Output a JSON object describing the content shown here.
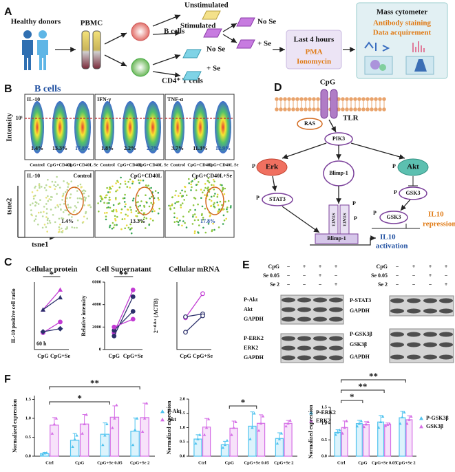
{
  "panel_a": {
    "label": "A",
    "donors": "Healthy donors",
    "pbmc": "PBMC",
    "b_cells": "B cells",
    "t_cells": "CD4⁺ T cells",
    "unstimulated": "Unstimulated",
    "stimulated": "Stimulated",
    "no_se_b": "No Se",
    "plus_se_b": "+ Se",
    "no_se_t": "No Se",
    "plus_se_t": "+ Se",
    "last": "Last 4 hours",
    "pma": "PMA",
    "ionomycin": "Ionomycin",
    "cytometer": "Mass cytometer",
    "staining": "Antibody staining",
    "acquirement": "Data acquirement"
  },
  "panel_b": {
    "label": "B",
    "title": "B cells",
    "y_label": "Intensity",
    "tick": "10¹",
    "plots": [
      {
        "marker": "IL-10",
        "percents": [
          "1.4%",
          "13.3%",
          "17.8%"
        ]
      },
      {
        "marker": "IFN-γ",
        "percents": [
          "1.8%",
          "2.2%",
          "2.7%"
        ]
      },
      {
        "marker": "TNF-α",
        "percents": [
          "3.7%",
          "11.3%",
          "12.9%"
        ]
      }
    ],
    "groups": [
      "Control",
      "CpG+CD40L",
      "CpG+CD40L Se"
    ],
    "tsne": {
      "marker": "IL-10",
      "titles": [
        "Control",
        "CpG+CD40L",
        "CpG+CD40L+Se"
      ],
      "percents": [
        "1.4%",
        "13.3%",
        "17.8%"
      ],
      "x_label": "tsne1",
      "y_label": "tsne2"
    }
  },
  "panel_c": {
    "label": "C"
  },
  "panel_d": {
    "label": "D",
    "cpg": "CpG",
    "tlr": "TLR",
    "ras": "RAS",
    "pik3": "PIK3",
    "erk": "Erk",
    "blimp": "Blimp-1",
    "akt": "Akt",
    "p": "P",
    "stat3": "STAT3",
    "gsk3": "GSK3",
    "repression_1": "IL10",
    "repression_2": "repression",
    "activation_1": "IL10",
    "activation_2": "activation",
    "blimp_box": "Blimp-1",
    "stat3_box": "STAT3"
  },
  "panel_e": {
    "label": "E",
    "treatments": [
      "CpG",
      "Se 0.05",
      "Se 2"
    ],
    "signs": [
      [
        "−",
        "+",
        "+",
        "+"
      ],
      [
        "−",
        "−",
        "+",
        "−"
      ],
      [
        "−",
        "−",
        "−",
        "+"
      ]
    ],
    "left_rows": [
      "P-Akt",
      "Akt",
      "GAPDH",
      "P-ERK2",
      "ERK2",
      "GAPDH"
    ],
    "right_rows": [
      "P-STAT3",
      "GAPDH",
      "P-GSK3β",
      "GSK3β",
      "GAPDH"
    ]
  },
  "panel_f": {
    "label": "F"
  },
  "chart_data": [
    {
      "type": "line",
      "title": "Cellular protein",
      "y_label": "IL-10 positive cell ratio",
      "note": "60 h",
      "categories": [
        "CpG",
        "CpG+Se"
      ],
      "ylim": [
        0,
        22
      ],
      "annotations": [
        "*"
      ],
      "series": [
        {
          "color": "#c23bd3",
          "marker": "triangle",
          "values": [
            13,
            19.5
          ]
        },
        {
          "color": "#2b2f6b",
          "marker": "triangle",
          "values": [
            13,
            17
          ]
        },
        {
          "color": "#c23bd3",
          "marker": "circle",
          "values": [
            5.5,
            9
          ]
        },
        {
          "color": "#2b2f6b",
          "marker": "diamond",
          "values": [
            5.8,
            6.8
          ]
        }
      ]
    },
    {
      "type": "line",
      "title": "Cell Supernatant",
      "y_label": "Relative intensity",
      "categories": [
        "CpG",
        "CpG+Se"
      ],
      "ylim": [
        0,
        6000
      ],
      "yticks": [
        0,
        2000,
        4000,
        6000
      ],
      "annotations": [
        "**"
      ],
      "series": [
        {
          "color": "#c23bd3",
          "marker": "circle",
          "values": [
            1500,
            5300
          ]
        },
        {
          "color": "#2b2f6b",
          "marker": "circle",
          "values": [
            1200,
            4700
          ]
        },
        {
          "color": "#2b2f6b",
          "marker": "circle",
          "values": [
            1700,
            3400
          ]
        },
        {
          "color": "#c23bd3",
          "marker": "circle",
          "values": [
            2000,
            2700
          ]
        }
      ]
    },
    {
      "type": "line",
      "title": "Cellular mRNA",
      "y_label": "2⁻ᐞᐞᶜᵗ (ACTB)",
      "categories": [
        "CpG",
        "CpG+Se"
      ],
      "ylim": [
        0,
        7
      ],
      "series": [
        {
          "color": "#c23bd3",
          "marker": "open-circle",
          "values": [
            3.3,
            5.8
          ]
        },
        {
          "color": "#2b2f6b",
          "marker": "open-circle",
          "values": [
            3.4,
            3.7
          ]
        },
        {
          "color": "#2b2f6b",
          "marker": "open-circle",
          "values": [
            1.8,
            3.5
          ]
        }
      ]
    },
    {
      "type": "bar",
      "y_label": "Normalized expression",
      "categories": [
        "Ctrl",
        "CpG",
        "CpG+Se 0.05",
        "CpG+Se 2"
      ],
      "ylim": [
        0,
        1.6
      ],
      "yticks": [
        {
          "value": 0,
          "label": "0.0"
        },
        {
          "value": 0.5,
          "label": "0.5"
        },
        {
          "value": 1,
          "label": "1.0"
        },
        {
          "value": 1.5,
          "label": "1.5"
        }
      ],
      "annotations": [
        "**",
        "*"
      ],
      "series": [
        {
          "name": "P-Akt",
          "color": "#4fc3ef",
          "values": [
            0.07,
            0.42,
            0.58,
            0.66
          ],
          "errors": [
            0.03,
            0.18,
            0.3,
            0.35
          ],
          "points": [
            [
              0.05,
              0.08,
              0.09
            ],
            [
              0.25,
              0.45,
              0.55
            ],
            [
              0.3,
              0.55,
              0.85
            ],
            [
              0.3,
              0.7,
              1.0
            ]
          ]
        },
        {
          "name": "Akt",
          "color": "#d56fe6",
          "values": [
            0.82,
            0.85,
            1.03,
            1.02
          ],
          "errors": [
            0.2,
            0.25,
            0.3,
            0.38
          ],
          "points": [
            [
              0.6,
              0.85,
              1.0
            ],
            [
              0.6,
              0.85,
              1.1
            ],
            [
              0.75,
              1.0,
              1.35
            ],
            [
              0.65,
              1.0,
              1.4
            ]
          ]
        }
      ]
    },
    {
      "type": "bar",
      "y_label": "Normalized expression",
      "categories": [
        "Ctrl",
        "CpG",
        "CpG+Se 0.05",
        "CpG+Se 2"
      ],
      "ylim": [
        0,
        2
      ],
      "yticks": [
        {
          "value": 0,
          "label": "0.0"
        },
        {
          "value": 0.5,
          "label": "0.5"
        },
        {
          "value": 1,
          "label": "1.0"
        },
        {
          "value": 1.5,
          "label": "1.5"
        },
        {
          "value": 2,
          "label": "2.0"
        }
      ],
      "annotations": [
        "*"
      ],
      "series": [
        {
          "name": "P-ERK2",
          "color": "#4fc3ef",
          "values": [
            0.6,
            0.4,
            1.05,
            0.62
          ],
          "errors": [
            0.15,
            0.12,
            0.5,
            0.2
          ],
          "points": [
            [
              0.45,
              0.6,
              0.75
            ],
            [
              0.3,
              0.4,
              0.55
            ],
            [
              0.6,
              1.0,
              1.5
            ],
            [
              0.45,
              0.6,
              0.8
            ]
          ]
        },
        {
          "name": "ERK2",
          "color": "#d56fe6",
          "values": [
            1.02,
            0.98,
            1.15,
            1.15
          ],
          "errors": [
            0.3,
            0.25,
            0.3,
            0.1
          ],
          "points": [
            [
              0.75,
              1.0,
              1.3
            ],
            [
              0.75,
              1.0,
              1.2
            ],
            [
              0.9,
              1.15,
              1.4
            ],
            [
              1.05,
              1.15,
              1.25
            ]
          ]
        }
      ]
    },
    {
      "type": "bar",
      "y_label": "Normalized expression",
      "categories": [
        "Ctrl",
        "CpG",
        "CpG+Se 0.05",
        "CpG+Se 2"
      ],
      "ylim": [
        0,
        1.5
      ],
      "yticks": [
        {
          "value": 0,
          "label": "0.0"
        },
        {
          "value": 0.5,
          "label": "0.5"
        },
        {
          "value": 1,
          "label": "1.0"
        },
        {
          "value": 1.5,
          "label": "1.5"
        }
      ],
      "annotations": [
        "**",
        "**",
        "*"
      ],
      "series": [
        {
          "name": "P-GSK3β",
          "color": "#4fc3ef",
          "values": [
            0.73,
            1.0,
            1.05,
            1.18
          ],
          "errors": [
            0.08,
            0.1,
            0.2,
            0.2
          ],
          "points": [
            [
              0.66,
              0.73,
              0.8
            ],
            [
              0.92,
              1.0,
              1.08
            ],
            [
              0.88,
              1.05,
              1.22
            ],
            [
              1.0,
              1.2,
              1.35
            ]
          ]
        },
        {
          "name": "GSK3β",
          "color": "#d56fe6",
          "values": [
            0.88,
            0.98,
            0.97,
            1.12
          ],
          "errors": [
            0.2,
            0.08,
            0.05,
            0.12
          ],
          "points": [
            [
              0.7,
              0.88,
              1.08
            ],
            [
              0.9,
              0.98,
              1.05
            ],
            [
              0.93,
              0.97,
              1.0
            ],
            [
              1.0,
              1.12,
              1.22
            ]
          ]
        }
      ]
    }
  ]
}
